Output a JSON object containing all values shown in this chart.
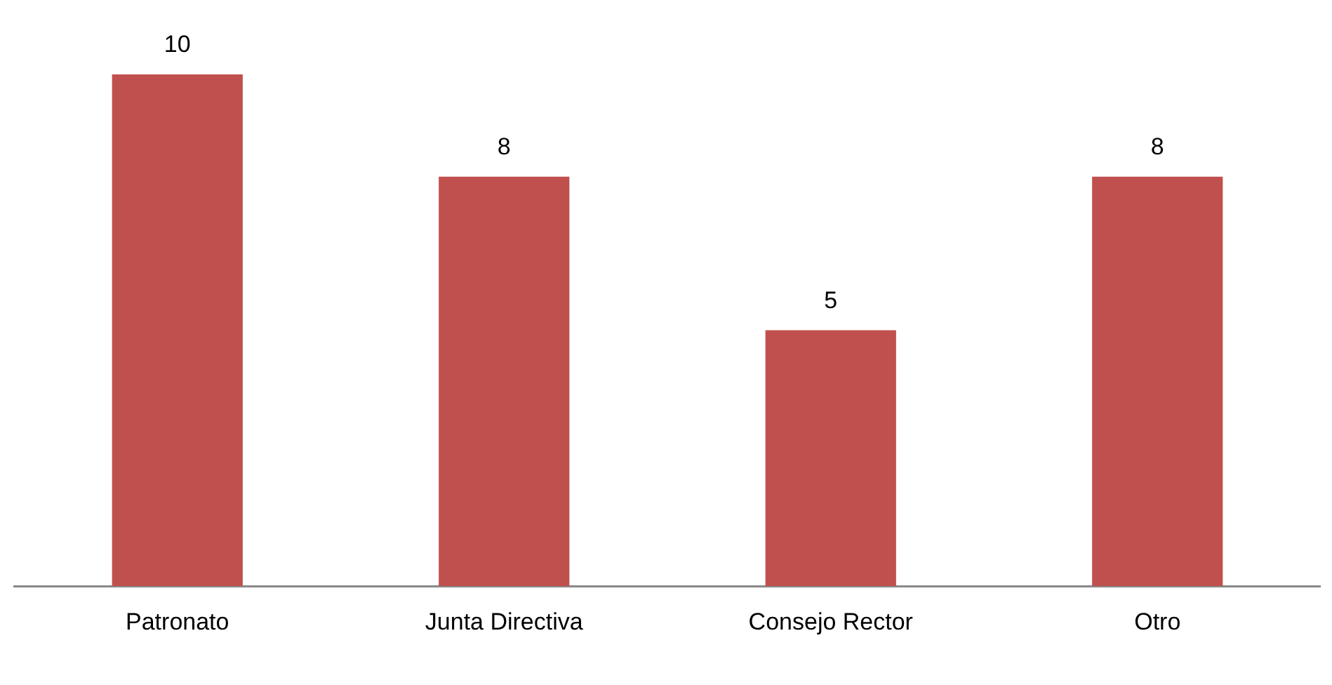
{
  "chart_data": {
    "type": "bar",
    "categories": [
      "Patronato",
      "Junta Directiva",
      "Consejo Rector",
      "Otro"
    ],
    "values": [
      10,
      8,
      5,
      8
    ],
    "color": "#c0504d",
    "data_labels": true,
    "grid": false,
    "legend": false
  }
}
